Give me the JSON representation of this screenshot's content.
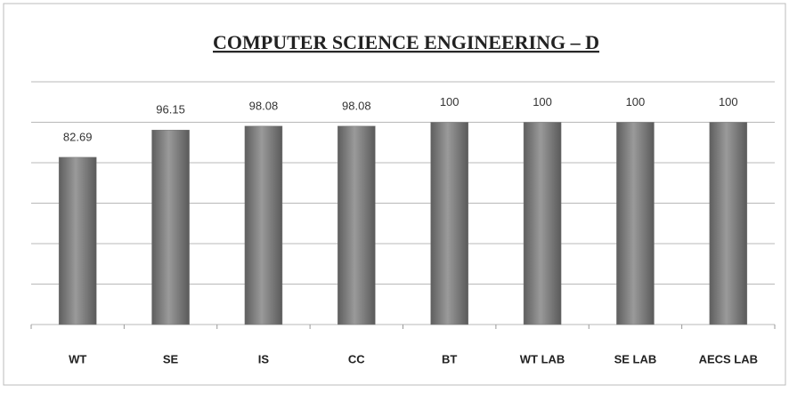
{
  "chart_data": {
    "type": "bar",
    "title": "COMPUTER SCIENCE ENGINEERING – D",
    "categories": [
      "WT",
      "SE",
      "IS",
      "CC",
      "BT",
      "WT LAB",
      "SE LAB",
      "AECS LAB"
    ],
    "values": [
      82.69,
      96.15,
      98.08,
      98.08,
      100,
      100,
      100,
      100
    ],
    "color": "#7a7a7a",
    "ylim": [
      0,
      120
    ],
    "yticks": [
      0,
      20,
      40,
      60,
      80,
      100,
      120
    ],
    "grid": true
  }
}
